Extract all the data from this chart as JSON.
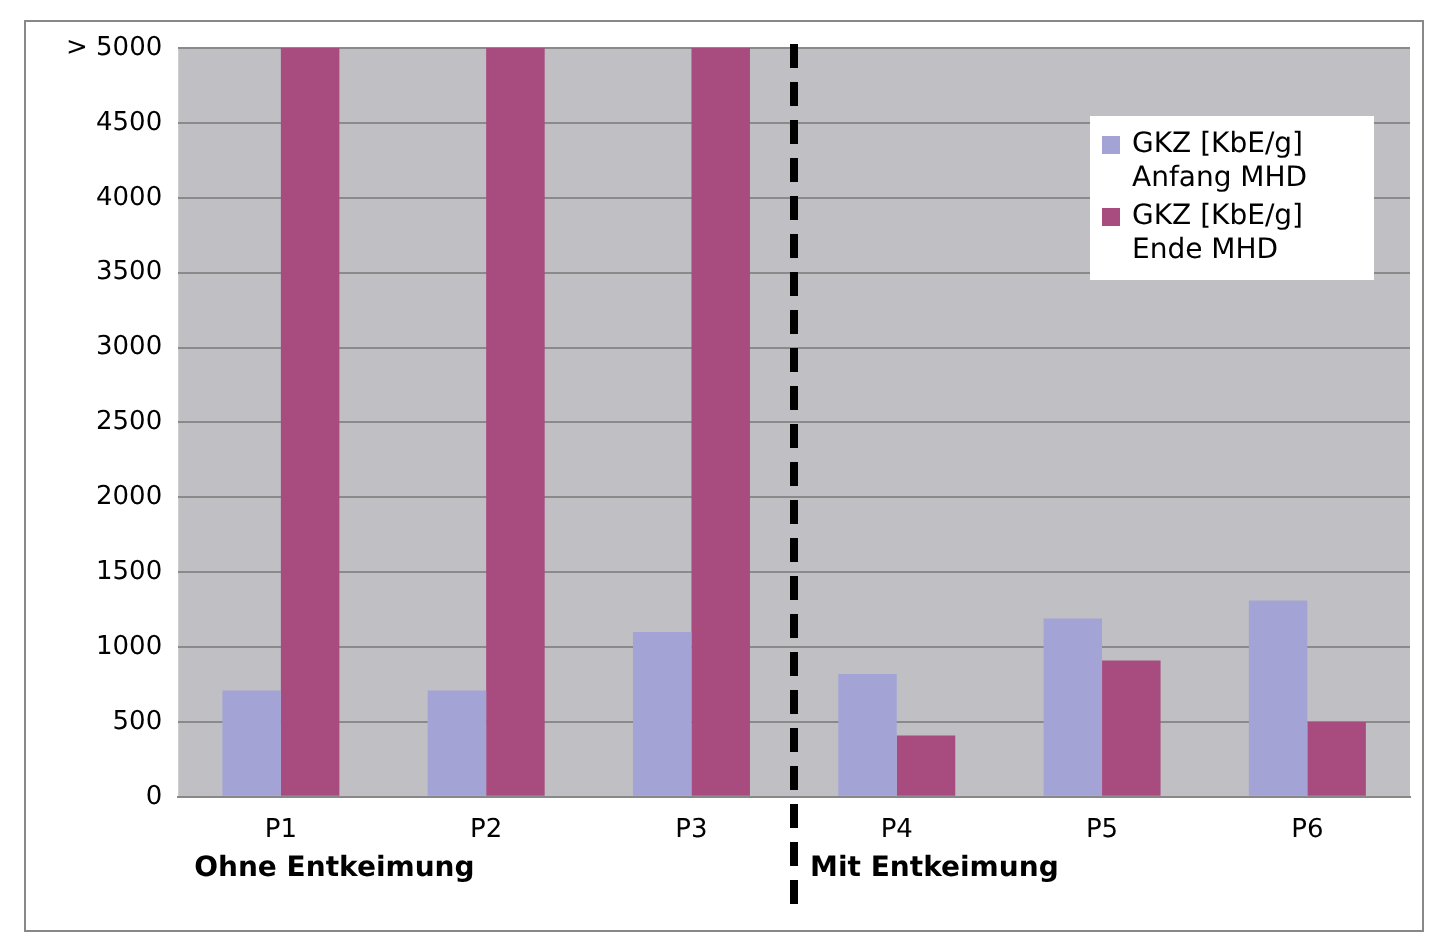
{
  "chart_data": {
    "type": "bar",
    "categories": [
      "P1",
      "P2",
      "P3",
      "P4",
      "P5",
      "P6"
    ],
    "series": [
      {
        "name": "GKZ [KbE/g] Anfang MHD",
        "color": "#a3a3d6",
        "values": [
          710,
          710,
          1100,
          820,
          1190,
          1310
        ]
      },
      {
        "name": "GKZ [KbE/g] Ende MHD",
        "color": "#a84b7e",
        "values": [
          5000,
          5000,
          5000,
          410,
          910,
          500
        ]
      }
    ],
    "ylim": [
      0,
      5000
    ],
    "yticks": [
      0,
      500,
      1000,
      1500,
      2000,
      2500,
      3000,
      3500,
      4000,
      4500,
      {
        "value": 5000,
        "label": "> 5000"
      }
    ],
    "grid": "y",
    "legend": "top right",
    "annotations": [
      "Ohne Entkeimung",
      "Mit Entkeimung"
    ]
  }
}
